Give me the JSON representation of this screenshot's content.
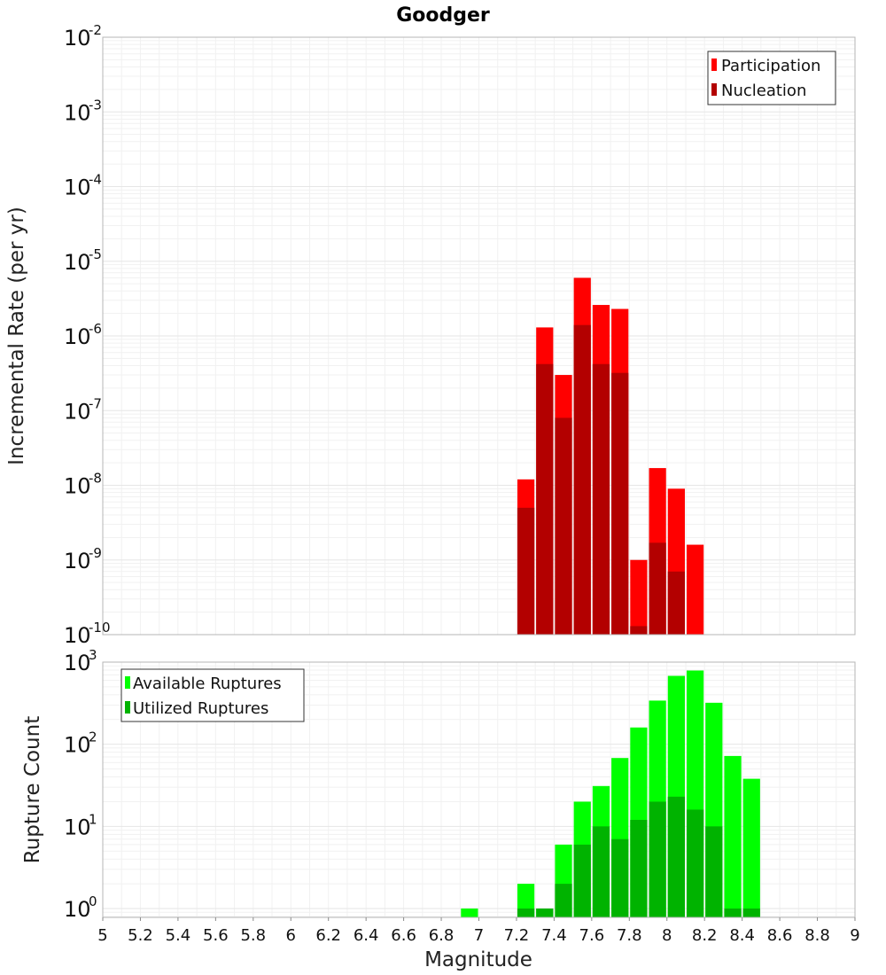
{
  "chart_data": [
    {
      "type": "bar",
      "title": "Goodger",
      "ylabel": "Incremental Rate (per yr)",
      "xlabel": "",
      "xlim": [
        5,
        9
      ],
      "ylim": [
        1e-10,
        0.01
      ],
      "yscale": "log",
      "grid": true,
      "legend_position": "top-right",
      "bin_width": 0.1,
      "legend": [
        {
          "label": "Participation",
          "color": "#ff0000"
        },
        {
          "label": "Nucleation",
          "color": "#b30000"
        }
      ],
      "series": [
        {
          "name": "Participation",
          "color": "#ff0000",
          "x": [
            7.25,
            7.35,
            7.45,
            7.55,
            7.65,
            7.75,
            7.85,
            7.95,
            8.05,
            8.15
          ],
          "values": [
            1.2e-08,
            1.3e-06,
            3e-07,
            6e-06,
            2.6e-06,
            2.3e-06,
            1e-09,
            1.7e-08,
            9e-09,
            1.6e-09
          ]
        },
        {
          "name": "Nucleation",
          "color": "#b30000",
          "x": [
            7.25,
            7.35,
            7.45,
            7.55,
            7.65,
            7.75,
            7.85,
            7.95,
            8.05
          ],
          "values": [
            5e-09,
            4.2e-07,
            8e-08,
            1.4e-06,
            4.2e-07,
            3.2e-07,
            1.3e-10,
            1.7e-09,
            7e-10
          ]
        }
      ]
    },
    {
      "type": "bar",
      "ylabel": "Rupture Count",
      "xlabel": "Magnitude",
      "xlim": [
        5,
        9
      ],
      "ylim": [
        0.78,
        1000
      ],
      "yscale": "log",
      "grid": true,
      "legend_position": "top-left",
      "bin_width": 0.1,
      "x_ticks": [
        "5",
        "5.2",
        "5.4",
        "5.6",
        "5.8",
        "6",
        "6.2",
        "6.4",
        "6.6",
        "6.8",
        "7",
        "7.2",
        "7.4",
        "7.6",
        "7.8",
        "8",
        "8.2",
        "8.4",
        "8.6",
        "8.8",
        "9"
      ],
      "legend": [
        {
          "label": "Available Ruptures",
          "color": "#00ff00"
        },
        {
          "label": "Utilized Ruptures",
          "color": "#00b300"
        }
      ],
      "series": [
        {
          "name": "Available Ruptures",
          "color": "#00ff00",
          "x": [
            6.95,
            7.25,
            7.35,
            7.45,
            7.55,
            7.65,
            7.75,
            7.85,
            7.95,
            8.05,
            8.15,
            8.25,
            8.35,
            8.45
          ],
          "values": [
            1,
            2,
            1,
            6,
            20,
            31,
            68,
            160,
            340,
            680,
            790,
            320,
            72,
            38
          ]
        },
        {
          "name": "Utilized Ruptures",
          "color": "#00b300",
          "x": [
            7.25,
            7.35,
            7.45,
            7.55,
            7.65,
            7.75,
            7.85,
            7.95,
            8.05,
            8.15,
            8.25,
            8.35,
            8.45
          ],
          "values": [
            1,
            1,
            2,
            6,
            10,
            7,
            12,
            20,
            23,
            16,
            10,
            1,
            1
          ]
        }
      ]
    }
  ]
}
